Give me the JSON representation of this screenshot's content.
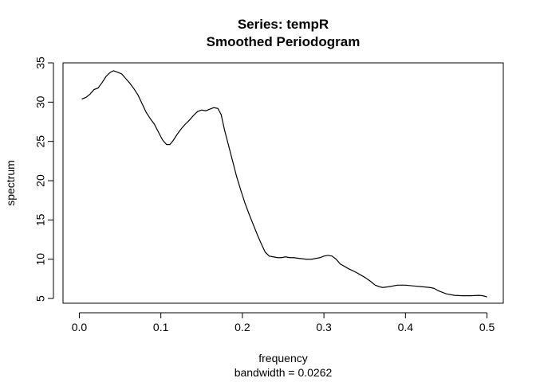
{
  "chart_data": {
    "type": "line",
    "title": "Series: tempR",
    "subtitle": "Smoothed Periodogram",
    "xlabel": "frequency",
    "xsublabel": "bandwidth = 0.0262",
    "ylabel": "spectrum",
    "xlim": [
      -0.02,
      0.52
    ],
    "ylim": [
      4.4,
      35.0
    ],
    "xticks": [
      0.0,
      0.1,
      0.2,
      0.3,
      0.4,
      0.5
    ],
    "xtick_labels": [
      "0.0",
      "0.1",
      "0.2",
      "0.3",
      "0.4",
      "0.5"
    ],
    "yticks": [
      5,
      10,
      15,
      20,
      25,
      30,
      35
    ],
    "ytick_labels": [
      "5",
      "10",
      "15",
      "20",
      "25",
      "30",
      "35"
    ],
    "grid": false,
    "series": [
      {
        "color": "#000000",
        "x": [
          0.003,
          0.008,
          0.013,
          0.018,
          0.023,
          0.028,
          0.033,
          0.038,
          0.042,
          0.047,
          0.052,
          0.057,
          0.062,
          0.067,
          0.072,
          0.077,
          0.082,
          0.087,
          0.092,
          0.097,
          0.102,
          0.107,
          0.111,
          0.115,
          0.12,
          0.125,
          0.13,
          0.135,
          0.14,
          0.145,
          0.15,
          0.155,
          0.16,
          0.165,
          0.17,
          0.174,
          0.178,
          0.183,
          0.188,
          0.193,
          0.198,
          0.203,
          0.208,
          0.213,
          0.218,
          0.223,
          0.228,
          0.233,
          0.238,
          0.243,
          0.248,
          0.253,
          0.258,
          0.263,
          0.27,
          0.278,
          0.285,
          0.29,
          0.295,
          0.3,
          0.305,
          0.31,
          0.315,
          0.32,
          0.33,
          0.34,
          0.35,
          0.357,
          0.363,
          0.368,
          0.372,
          0.38,
          0.39,
          0.4,
          0.41,
          0.42,
          0.43,
          0.435,
          0.44,
          0.45,
          0.46,
          0.47,
          0.48,
          0.49,
          0.495,
          0.5
        ],
        "y": [
          30.4,
          30.6,
          31.0,
          31.6,
          31.8,
          32.5,
          33.3,
          33.8,
          34.0,
          33.8,
          33.6,
          33.0,
          32.4,
          31.7,
          30.9,
          29.8,
          28.7,
          27.9,
          27.2,
          26.2,
          25.2,
          24.6,
          24.6,
          25.1,
          25.9,
          26.6,
          27.2,
          27.7,
          28.3,
          28.8,
          29.0,
          28.9,
          29.1,
          29.3,
          29.2,
          28.4,
          26.5,
          24.5,
          22.5,
          20.5,
          18.8,
          17.2,
          15.8,
          14.5,
          13.2,
          12.0,
          10.9,
          10.4,
          10.3,
          10.2,
          10.2,
          10.3,
          10.2,
          10.2,
          10.1,
          10.0,
          10.0,
          10.1,
          10.2,
          10.4,
          10.5,
          10.4,
          10.0,
          9.4,
          8.8,
          8.3,
          7.7,
          7.2,
          6.7,
          6.5,
          6.4,
          6.5,
          6.7,
          6.7,
          6.6,
          6.5,
          6.4,
          6.3,
          6.0,
          5.6,
          5.4,
          5.35,
          5.35,
          5.4,
          5.35,
          5.2
        ]
      }
    ]
  }
}
